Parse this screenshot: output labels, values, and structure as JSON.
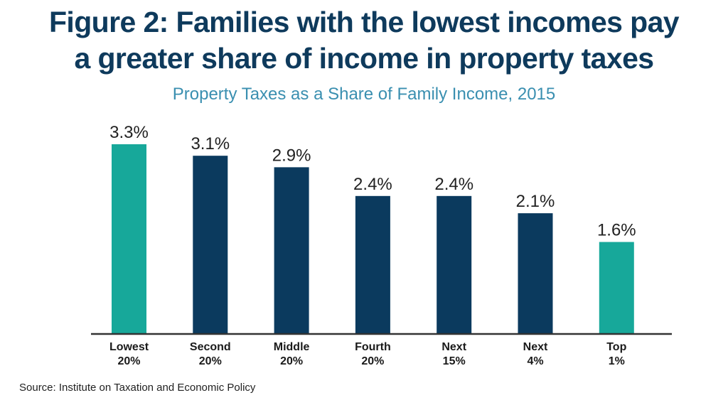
{
  "header": {
    "title_line1": "Figure 2: Families with the lowest incomes pay",
    "title_line2": "a greater share of income in property taxes"
  },
  "footer": {
    "source": "Source: Institute on Taxation and Economic Policy"
  },
  "colors": {
    "title": "#0e3a5c",
    "subtitle": "#3a8fb0",
    "highlight_bar": "#17a89a",
    "default_bar": "#0b3a5e",
    "axis": "#333333"
  },
  "chart_data": {
    "type": "bar",
    "title": "Property Taxes as a Share of Family Income, 2015",
    "xlabel": "",
    "ylabel": "",
    "ylim": [
      0,
      3.3
    ],
    "grid": false,
    "legend": "none",
    "unit": "%",
    "categories": [
      [
        "Lowest",
        "20%"
      ],
      [
        "Second",
        "20%"
      ],
      [
        "Middle",
        "20%"
      ],
      [
        "Fourth",
        "20%"
      ],
      [
        "Next",
        "15%"
      ],
      [
        "Next",
        "4%"
      ],
      [
        "Top",
        "1%"
      ]
    ],
    "values": [
      3.3,
      3.1,
      2.9,
      2.4,
      2.4,
      2.1,
      1.6
    ],
    "value_labels": [
      "3.3%",
      "3.1%",
      "2.9%",
      "2.4%",
      "2.4%",
      "2.1%",
      "1.6%"
    ],
    "highlighted": [
      true,
      false,
      false,
      false,
      false,
      false,
      true
    ]
  }
}
